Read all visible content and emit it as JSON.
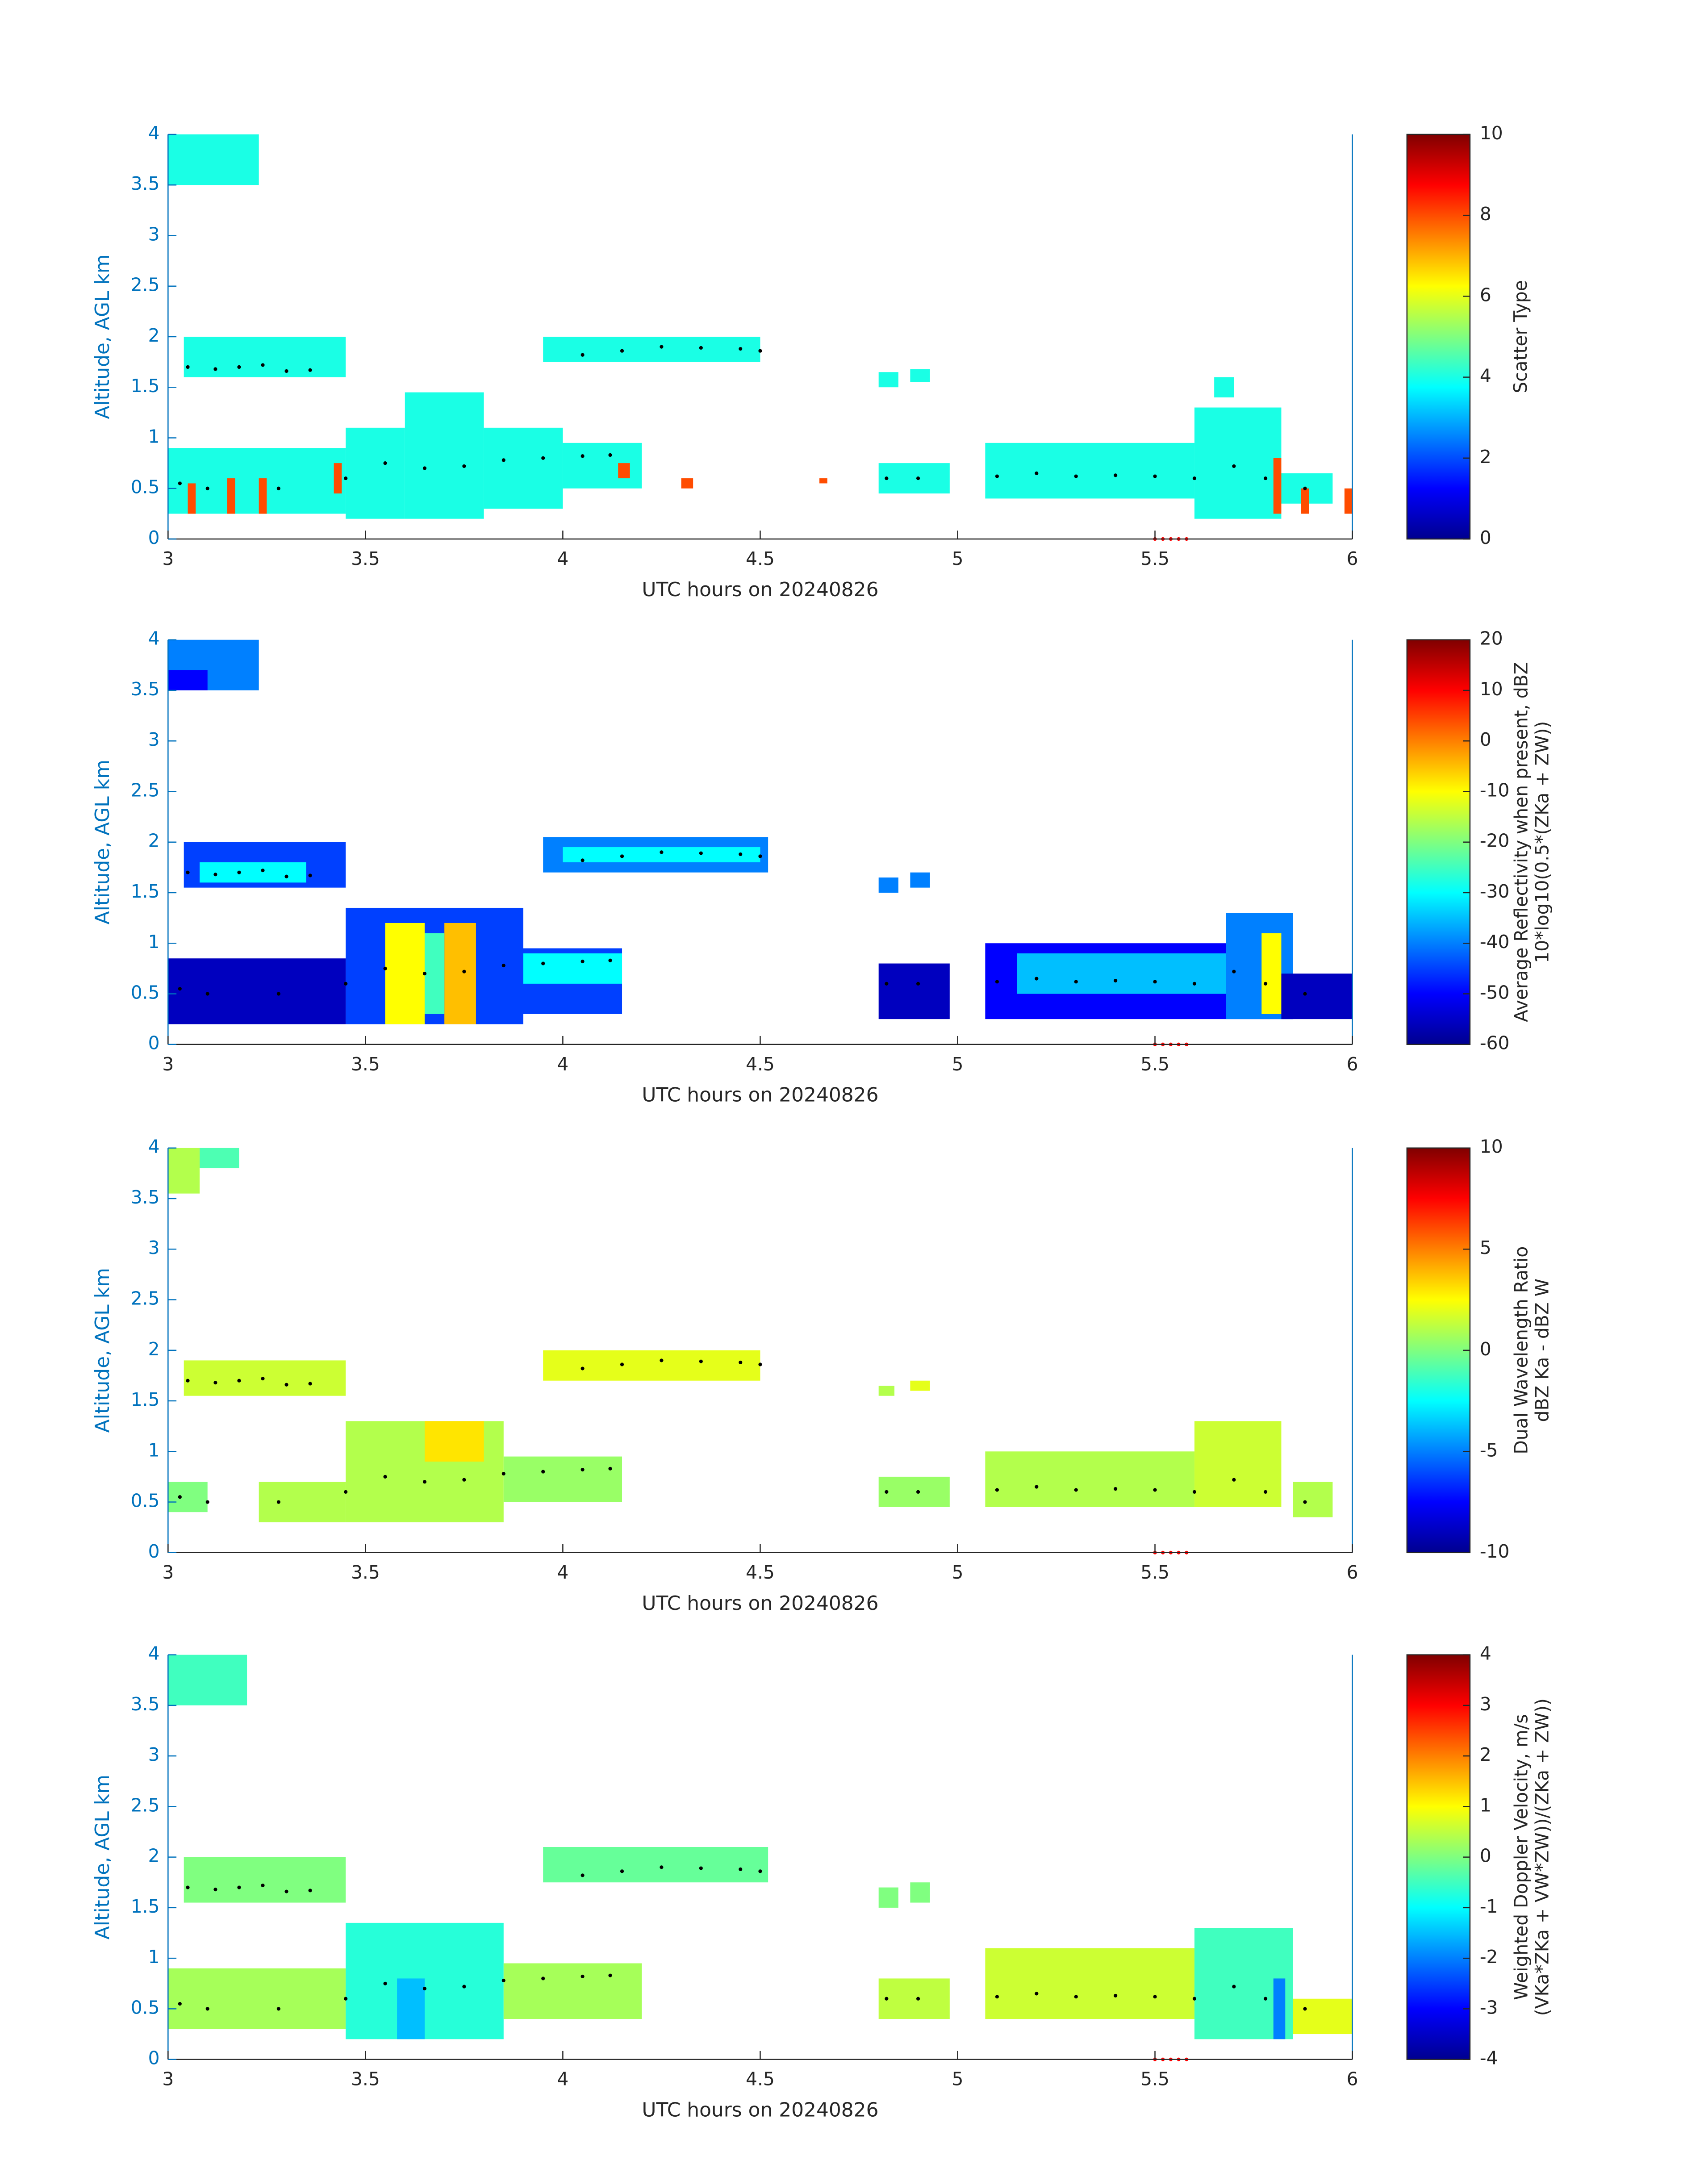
{
  "chart_data": [
    {
      "type": "heatmap",
      "colormap": "jet",
      "xlabel": "UTC hours on 20240826",
      "ylabel": "Altitude, AGL km",
      "xlim": [
        3,
        6
      ],
      "ylim": [
        0,
        4
      ],
      "xticks": [
        3,
        3.5,
        4,
        4.5,
        5,
        5.5,
        6
      ],
      "yticks": [
        0,
        0.5,
        1,
        1.5,
        2,
        2.5,
        3,
        3.5,
        4
      ],
      "clim": [
        0,
        10
      ],
      "cticks": [
        0,
        2,
        4,
        6,
        8,
        10
      ],
      "colorbar_label": [
        "Scatter Type"
      ],
      "cells": [
        {
          "x0": 3.0,
          "x1": 3.23,
          "y0": 3.5,
          "y1": 4.0,
          "value": 4
        },
        {
          "x0": 3.04,
          "x1": 3.45,
          "y0": 1.6,
          "y1": 2.0,
          "value": 4
        },
        {
          "x0": 3.0,
          "x1": 3.45,
          "y0": 0.25,
          "y1": 0.9,
          "value": 4
        },
        {
          "x0": 3.45,
          "x1": 3.6,
          "y0": 0.2,
          "y1": 1.1,
          "value": 4
        },
        {
          "x0": 3.6,
          "x1": 3.8,
          "y0": 0.2,
          "y1": 1.45,
          "value": 4
        },
        {
          "x0": 3.8,
          "x1": 4.0,
          "y0": 0.3,
          "y1": 1.1,
          "value": 4
        },
        {
          "x0": 4.0,
          "x1": 4.2,
          "y0": 0.5,
          "y1": 0.95,
          "value": 4
        },
        {
          "x0": 3.95,
          "x1": 4.5,
          "y0": 1.75,
          "y1": 2.0,
          "value": 4
        },
        {
          "x0": 4.8,
          "x1": 4.85,
          "y0": 1.5,
          "y1": 1.65,
          "value": 4
        },
        {
          "x0": 4.88,
          "x1": 4.93,
          "y0": 1.55,
          "y1": 1.68,
          "value": 4
        },
        {
          "x0": 4.8,
          "x1": 4.98,
          "y0": 0.45,
          "y1": 0.75,
          "value": 4
        },
        {
          "x0": 5.07,
          "x1": 5.6,
          "y0": 0.4,
          "y1": 0.95,
          "value": 4
        },
        {
          "x0": 5.6,
          "x1": 5.82,
          "y0": 0.2,
          "y1": 1.3,
          "value": 4
        },
        {
          "x0": 5.82,
          "x1": 5.95,
          "y0": 0.35,
          "y1": 0.65,
          "value": 4
        },
        {
          "x0": 5.65,
          "x1": 5.7,
          "y0": 1.4,
          "y1": 1.6,
          "value": 4
        },
        {
          "x0": 3.05,
          "x1": 3.07,
          "y0": 0.25,
          "y1": 0.55,
          "value": 8
        },
        {
          "x0": 3.15,
          "x1": 3.17,
          "y0": 0.25,
          "y1": 0.6,
          "value": 8
        },
        {
          "x0": 3.23,
          "x1": 3.25,
          "y0": 0.25,
          "y1": 0.6,
          "value": 8
        },
        {
          "x0": 3.42,
          "x1": 3.44,
          "y0": 0.45,
          "y1": 0.75,
          "value": 8
        },
        {
          "x0": 4.14,
          "x1": 4.17,
          "y0": 0.6,
          "y1": 0.75,
          "value": 8
        },
        {
          "x0": 4.3,
          "x1": 4.33,
          "y0": 0.5,
          "y1": 0.6,
          "value": 8
        },
        {
          "x0": 4.65,
          "x1": 4.67,
          "y0": 0.55,
          "y1": 0.6,
          "value": 8
        },
        {
          "x0": 5.8,
          "x1": 5.82,
          "y0": 0.25,
          "y1": 0.8,
          "value": 8
        },
        {
          "x0": 5.87,
          "x1": 5.89,
          "y0": 0.25,
          "y1": 0.5,
          "value": 8
        },
        {
          "x0": 5.98,
          "x1": 6.0,
          "y0": 0.25,
          "y1": 0.5,
          "value": 8
        }
      ],
      "points": [
        {
          "color": "#000000",
          "x": [
            3.05,
            3.12,
            3.18,
            3.24,
            3.3,
            3.36,
            4.05,
            4.15,
            4.25,
            4.35,
            4.45,
            4.5,
            3.03,
            3.1,
            3.28,
            3.45,
            3.55,
            3.65,
            3.75,
            3.85,
            3.95,
            4.05,
            4.12,
            4.82,
            4.9,
            5.1,
            5.2,
            5.3,
            5.4,
            5.5,
            5.6,
            5.7,
            5.78,
            5.88
          ],
          "y": [
            1.7,
            1.68,
            1.7,
            1.72,
            1.66,
            1.67,
            1.82,
            1.86,
            1.9,
            1.89,
            1.88,
            1.86,
            0.55,
            0.5,
            0.5,
            0.6,
            0.75,
            0.7,
            0.72,
            0.78,
            0.8,
            0.82,
            0.83,
            0.6,
            0.6,
            0.62,
            0.65,
            0.62,
            0.63,
            0.62,
            0.6,
            0.72,
            0.6,
            0.5
          ]
        },
        {
          "color": "#ff0000",
          "x": [
            5.5,
            5.52,
            5.54,
            5.56,
            5.58
          ],
          "y": [
            0,
            0,
            0,
            0,
            0
          ]
        }
      ]
    },
    {
      "type": "heatmap",
      "colormap": "jet",
      "xlabel": "UTC hours on 20240826",
      "ylabel": "Altitude, AGL km",
      "xlim": [
        3,
        6
      ],
      "ylim": [
        0,
        4
      ],
      "xticks": [
        3,
        3.5,
        4,
        4.5,
        5,
        5.5,
        6
      ],
      "yticks": [
        0,
        0.5,
        1,
        1.5,
        2,
        2.5,
        3,
        3.5,
        4
      ],
      "clim": [
        -60,
        20
      ],
      "cticks": [
        -60,
        -50,
        -40,
        -30,
        -20,
        -10,
        0,
        10,
        20
      ],
      "colorbar_label": [
        "Average Reflectivity when present, dBZ",
        "10*log10(0.5*(ZKa + ZW))"
      ],
      "cells": [
        {
          "x0": 3.0,
          "x1": 3.23,
          "y0": 3.5,
          "y1": 4.0,
          "value": -40
        },
        {
          "x0": 3.0,
          "x1": 3.1,
          "y0": 3.5,
          "y1": 3.7,
          "value": -50
        },
        {
          "x0": 3.04,
          "x1": 3.45,
          "y0": 1.55,
          "y1": 2.0,
          "value": -45
        },
        {
          "x0": 3.08,
          "x1": 3.35,
          "y0": 1.6,
          "y1": 1.8,
          "value": -30
        },
        {
          "x0": 3.0,
          "x1": 3.45,
          "y0": 0.2,
          "y1": 0.85,
          "value": -55
        },
        {
          "x0": 3.45,
          "x1": 3.9,
          "y0": 0.2,
          "y1": 1.35,
          "value": -45
        },
        {
          "x0": 3.55,
          "x1": 3.65,
          "y0": 0.2,
          "y1": 1.2,
          "value": -10
        },
        {
          "x0": 3.7,
          "x1": 3.78,
          "y0": 0.2,
          "y1": 1.2,
          "value": -5
        },
        {
          "x0": 3.65,
          "x1": 3.7,
          "y0": 0.3,
          "y1": 1.1,
          "value": -25
        },
        {
          "x0": 3.9,
          "x1": 4.15,
          "y0": 0.3,
          "y1": 0.95,
          "value": -45
        },
        {
          "x0": 3.9,
          "x1": 4.15,
          "y0": 0.6,
          "y1": 0.9,
          "value": -30
        },
        {
          "x0": 3.95,
          "x1": 4.52,
          "y0": 1.7,
          "y1": 2.05,
          "value": -40
        },
        {
          "x0": 4.0,
          "x1": 4.5,
          "y0": 1.8,
          "y1": 1.95,
          "value": -30
        },
        {
          "x0": 4.8,
          "x1": 4.85,
          "y0": 1.5,
          "y1": 1.65,
          "value": -40
        },
        {
          "x0": 4.88,
          "x1": 4.93,
          "y0": 1.55,
          "y1": 1.7,
          "value": -40
        },
        {
          "x0": 4.8,
          "x1": 4.98,
          "y0": 0.25,
          "y1": 0.8,
          "value": -55
        },
        {
          "x0": 5.07,
          "x1": 5.85,
          "y0": 0.25,
          "y1": 1.0,
          "value": -50
        },
        {
          "x0": 5.15,
          "x1": 5.7,
          "y0": 0.5,
          "y1": 0.9,
          "value": -35
        },
        {
          "x0": 5.68,
          "x1": 5.85,
          "y0": 0.25,
          "y1": 1.3,
          "value": -40
        },
        {
          "x0": 5.77,
          "x1": 5.82,
          "y0": 0.3,
          "y1": 1.1,
          "value": -10
        },
        {
          "x0": 5.82,
          "x1": 6.0,
          "y0": 0.25,
          "y1": 0.7,
          "value": -55
        }
      ],
      "points": [
        {
          "color": "#000000",
          "x": [
            3.05,
            3.12,
            3.18,
            3.24,
            3.3,
            3.36,
            4.05,
            4.15,
            4.25,
            4.35,
            4.45,
            4.5,
            3.03,
            3.1,
            3.28,
            3.45,
            3.55,
            3.65,
            3.75,
            3.85,
            3.95,
            4.05,
            4.12,
            4.82,
            4.9,
            5.1,
            5.2,
            5.3,
            5.4,
            5.5,
            5.6,
            5.7,
            5.78,
            5.88
          ],
          "y": [
            1.7,
            1.68,
            1.7,
            1.72,
            1.66,
            1.67,
            1.82,
            1.86,
            1.9,
            1.89,
            1.88,
            1.86,
            0.55,
            0.5,
            0.5,
            0.6,
            0.75,
            0.7,
            0.72,
            0.78,
            0.8,
            0.82,
            0.83,
            0.6,
            0.6,
            0.62,
            0.65,
            0.62,
            0.63,
            0.62,
            0.6,
            0.72,
            0.6,
            0.5
          ]
        },
        {
          "color": "#ff0000",
          "x": [
            5.5,
            5.52,
            5.54,
            5.56,
            5.58
          ],
          "y": [
            0,
            0,
            0,
            0,
            0
          ]
        }
      ]
    },
    {
      "type": "heatmap",
      "colormap": "jet",
      "xlabel": "UTC hours on 20240826",
      "ylabel": "Altitude, AGL km",
      "xlim": [
        3,
        6
      ],
      "ylim": [
        0,
        4
      ],
      "xticks": [
        3,
        3.5,
        4,
        4.5,
        5,
        5.5,
        6
      ],
      "yticks": [
        0,
        0.5,
        1,
        1.5,
        2,
        2.5,
        3,
        3.5,
        4
      ],
      "clim": [
        -10,
        10
      ],
      "cticks": [
        -10,
        -5,
        0,
        5,
        10
      ],
      "colorbar_label": [
        "Dual Wavelength Ratio",
        "dBZ Ka - dBZ W"
      ],
      "cells": [
        {
          "x0": 3.0,
          "x1": 3.08,
          "y0": 3.55,
          "y1": 4.0,
          "value": 1
        },
        {
          "x0": 3.08,
          "x1": 3.18,
          "y0": 3.8,
          "y1": 4.0,
          "value": -1
        },
        {
          "x0": 3.04,
          "x1": 3.45,
          "y0": 1.55,
          "y1": 1.9,
          "value": 1.5
        },
        {
          "x0": 3.0,
          "x1": 3.1,
          "y0": 0.4,
          "y1": 0.7,
          "value": 0
        },
        {
          "x0": 3.23,
          "x1": 3.45,
          "y0": 0.3,
          "y1": 0.7,
          "value": 1
        },
        {
          "x0": 3.45,
          "x1": 3.85,
          "y0": 0.3,
          "y1": 1.3,
          "value": 1
        },
        {
          "x0": 3.65,
          "x1": 3.8,
          "y0": 0.9,
          "y1": 1.3,
          "value": 3
        },
        {
          "x0": 3.85,
          "x1": 4.15,
          "y0": 0.5,
          "y1": 0.95,
          "value": 0.5
        },
        {
          "x0": 3.95,
          "x1": 4.5,
          "y0": 1.7,
          "y1": 2.0,
          "value": 2
        },
        {
          "x0": 4.8,
          "x1": 4.84,
          "y0": 1.55,
          "y1": 1.65,
          "value": 1
        },
        {
          "x0": 4.88,
          "x1": 4.93,
          "y0": 1.6,
          "y1": 1.7,
          "value": 2
        },
        {
          "x0": 4.8,
          "x1": 4.98,
          "y0": 0.45,
          "y1": 0.75,
          "value": 0.5
        },
        {
          "x0": 5.07,
          "x1": 5.6,
          "y0": 0.45,
          "y1": 1.0,
          "value": 1
        },
        {
          "x0": 5.6,
          "x1": 5.82,
          "y0": 0.45,
          "y1": 1.3,
          "value": 1.5
        },
        {
          "x0": 5.85,
          "x1": 5.95,
          "y0": 0.35,
          "y1": 0.7,
          "value": 1
        }
      ],
      "points": [
        {
          "color": "#000000",
          "x": [
            3.05,
            3.12,
            3.18,
            3.24,
            3.3,
            3.36,
            4.05,
            4.15,
            4.25,
            4.35,
            4.45,
            4.5,
            3.03,
            3.1,
            3.28,
            3.45,
            3.55,
            3.65,
            3.75,
            3.85,
            3.95,
            4.05,
            4.12,
            4.82,
            4.9,
            5.1,
            5.2,
            5.3,
            5.4,
            5.5,
            5.6,
            5.7,
            5.78,
            5.88
          ],
          "y": [
            1.7,
            1.68,
            1.7,
            1.72,
            1.66,
            1.67,
            1.82,
            1.86,
            1.9,
            1.89,
            1.88,
            1.86,
            0.55,
            0.5,
            0.5,
            0.6,
            0.75,
            0.7,
            0.72,
            0.78,
            0.8,
            0.82,
            0.83,
            0.6,
            0.6,
            0.62,
            0.65,
            0.62,
            0.63,
            0.62,
            0.6,
            0.72,
            0.6,
            0.5
          ]
        },
        {
          "color": "#ff0000",
          "x": [
            5.5,
            5.52,
            5.54,
            5.56,
            5.58
          ],
          "y": [
            0,
            0,
            0,
            0,
            0
          ]
        }
      ]
    },
    {
      "type": "heatmap",
      "colormap": "jet",
      "xlabel": "UTC hours on 20240826",
      "ylabel": "Altitude, AGL km",
      "xlim": [
        3,
        6
      ],
      "ylim": [
        0,
        4
      ],
      "xticks": [
        3,
        3.5,
        4,
        4.5,
        5,
        5.5,
        6
      ],
      "yticks": [
        0,
        0.5,
        1,
        1.5,
        2,
        2.5,
        3,
        3.5,
        4
      ],
      "clim": [
        -4,
        4
      ],
      "cticks": [
        -4,
        -3,
        -2,
        -1,
        0,
        1,
        2,
        3,
        4
      ],
      "colorbar_label": [
        "Weighted Doppler Velocity, m/s",
        "(VKa*ZKa + VW*ZW))/(ZKa + ZW))"
      ],
      "cells": [
        {
          "x0": 3.0,
          "x1": 3.2,
          "y0": 3.5,
          "y1": 4.0,
          "value": -0.5
        },
        {
          "x0": 3.04,
          "x1": 3.45,
          "y0": 1.55,
          "y1": 2.0,
          "value": 0
        },
        {
          "x0": 3.0,
          "x1": 3.45,
          "y0": 0.3,
          "y1": 0.9,
          "value": 0.3
        },
        {
          "x0": 3.45,
          "x1": 3.85,
          "y0": 0.2,
          "y1": 1.35,
          "value": -0.7
        },
        {
          "x0": 3.58,
          "x1": 3.65,
          "y0": 0.2,
          "y1": 0.8,
          "value": -1.5
        },
        {
          "x0": 3.85,
          "x1": 4.2,
          "y0": 0.4,
          "y1": 0.95,
          "value": 0.3
        },
        {
          "x0": 3.95,
          "x1": 4.52,
          "y0": 1.75,
          "y1": 2.1,
          "value": -0.2
        },
        {
          "x0": 4.8,
          "x1": 4.85,
          "y0": 1.5,
          "y1": 1.7,
          "value": 0
        },
        {
          "x0": 4.88,
          "x1": 4.93,
          "y0": 1.55,
          "y1": 1.75,
          "value": 0
        },
        {
          "x0": 4.8,
          "x1": 4.98,
          "y0": 0.4,
          "y1": 0.8,
          "value": 0.5
        },
        {
          "x0": 5.07,
          "x1": 5.6,
          "y0": 0.4,
          "y1": 1.1,
          "value": 0.6
        },
        {
          "x0": 5.6,
          "x1": 5.85,
          "y0": 0.2,
          "y1": 1.3,
          "value": -0.5
        },
        {
          "x0": 5.8,
          "x1": 5.83,
          "y0": 0.2,
          "y1": 0.8,
          "value": -2
        },
        {
          "x0": 5.85,
          "x1": 6.0,
          "y0": 0.25,
          "y1": 0.6,
          "value": 0.8
        }
      ],
      "points": [
        {
          "color": "#000000",
          "x": [
            3.05,
            3.12,
            3.18,
            3.24,
            3.3,
            3.36,
            4.05,
            4.15,
            4.25,
            4.35,
            4.45,
            4.5,
            3.03,
            3.1,
            3.28,
            3.45,
            3.55,
            3.65,
            3.75,
            3.85,
            3.95,
            4.05,
            4.12,
            4.82,
            4.9,
            5.1,
            5.2,
            5.3,
            5.4,
            5.5,
            5.6,
            5.7,
            5.78,
            5.88
          ],
          "y": [
            1.7,
            1.68,
            1.7,
            1.72,
            1.66,
            1.67,
            1.82,
            1.86,
            1.9,
            1.89,
            1.88,
            1.86,
            0.55,
            0.5,
            0.5,
            0.6,
            0.75,
            0.7,
            0.72,
            0.78,
            0.8,
            0.82,
            0.83,
            0.6,
            0.6,
            0.62,
            0.65,
            0.62,
            0.63,
            0.62,
            0.6,
            0.72,
            0.6,
            0.5
          ]
        },
        {
          "color": "#ff0000",
          "x": [
            5.5,
            5.52,
            5.54,
            5.56,
            5.58
          ],
          "y": [
            0,
            0,
            0,
            0,
            0
          ]
        }
      ]
    }
  ]
}
